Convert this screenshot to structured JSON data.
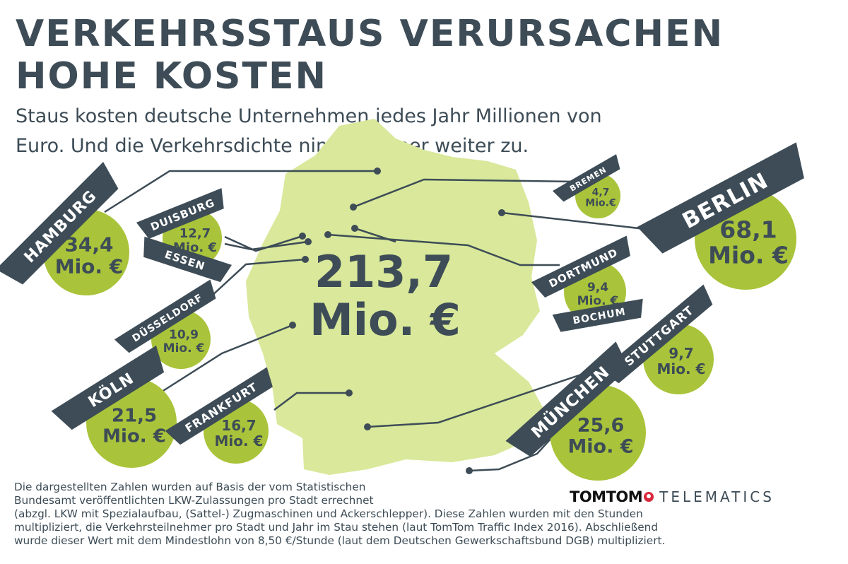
{
  "header": {
    "title_line1": "VERKEHRSSTAUS VERURSACHEN",
    "title_line2": "HOHE KOSTEN",
    "subtitle_line1": "Staus kosten deutsche Unternehmen jedes Jahr Millionen von",
    "subtitle_line2": "Euro. Und die Verkehrsdichte nimmt immer weiter zu."
  },
  "total": {
    "value": "213,7",
    "unit": "Mio. €"
  },
  "cities": [
    {
      "id": "hamburg",
      "labels": [
        "HAMBURG"
      ],
      "value": "34,4",
      "unit": "Mio. €"
    },
    {
      "id": "duisburg-essen",
      "labels": [
        "DUISBURG",
        "ESSEN"
      ],
      "value": "12,7",
      "unit": "Mio. €"
    },
    {
      "id": "duesseldorf",
      "labels": [
        "DÜSSELDORF"
      ],
      "value": "10,9",
      "unit": "Mio. €"
    },
    {
      "id": "koeln",
      "labels": [
        "KÖLN"
      ],
      "value": "21,5",
      "unit": "Mio. €"
    },
    {
      "id": "frankfurt",
      "labels": [
        "FRANKFURT"
      ],
      "value": "16,7",
      "unit": "Mio. €"
    },
    {
      "id": "bremen",
      "labels": [
        "BREMEN"
      ],
      "value": "4,7",
      "unit": "Mio.€"
    },
    {
      "id": "berlin",
      "labels": [
        "BERLIN"
      ],
      "value": "68,1",
      "unit": "Mio. €"
    },
    {
      "id": "dortmund-bochum",
      "labels": [
        "DORTMUND",
        "BOCHUM"
      ],
      "value": "9,4",
      "unit": "Mio. €"
    },
    {
      "id": "stuttgart",
      "labels": [
        "STUTTGART"
      ],
      "value": "9,7",
      "unit": "Mio. €"
    },
    {
      "id": "muenchen",
      "labels": [
        "MÜNCHEN"
      ],
      "value": "25,6",
      "unit": "Mio. €"
    }
  ],
  "footnote": [
    "Die dargestellten Zahlen wurden auf Basis der vom Statistischen",
    "Bundesamt veröffentlichten LKW-Zulassungen pro Stadt errechnet",
    "(abzgl. LKW mit Spezialaufbau, (Sattel-) Zugmaschinen und Ackerschlepper). Diese Zahlen wurden mit den Stunden",
    "multipliziert, die Verkehrsteilnehmer pro Stadt und Jahr im Stau stehen (laut TomTom Traffic Index 2016). Abschließend",
    "wurde dieser Wert mit dem Mindestlohn von 8,50 €/Stunde (laut dem Deutschen Gewerkschaftsbund DGB) multipliziert."
  ],
  "logo": {
    "brand": "TOMTOM",
    "product": "TELEMATICS",
    "mark_icon": "tomtom-hand-icon"
  },
  "colors": {
    "dark": "#3d4c56",
    "bubble": "#a9c43a",
    "map": "#d9e89a",
    "brand_red": "#d9283c"
  }
}
